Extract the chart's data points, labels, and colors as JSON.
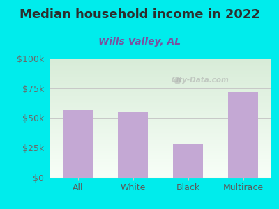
{
  "title": "Median household income in 2022",
  "subtitle": "Wills Valley, AL",
  "categories": [
    "All",
    "White",
    "Black",
    "Multirace"
  ],
  "values": [
    57000,
    55000,
    28000,
    72000
  ],
  "bar_color": "#c4a8d4",
  "background_color": "#00ecec",
  "plot_bg_top": "#d8ecd8",
  "plot_bg_bottom": "#f8fff8",
  "title_color": "#2d2d2d",
  "subtitle_color": "#7b4fa0",
  "axis_label_color": "#5a5a5a",
  "tick_color": "#6a6a6a",
  "grid_color": "#c8c8c8",
  "ylim": [
    0,
    100000
  ],
  "yticks": [
    0,
    25000,
    50000,
    75000,
    100000
  ],
  "ytick_labels": [
    "$0",
    "$25k",
    "$50k",
    "$75k",
    "$100k"
  ],
  "watermark": "City-Data.com",
  "title_fontsize": 13,
  "subtitle_fontsize": 10,
  "tick_fontsize": 9
}
